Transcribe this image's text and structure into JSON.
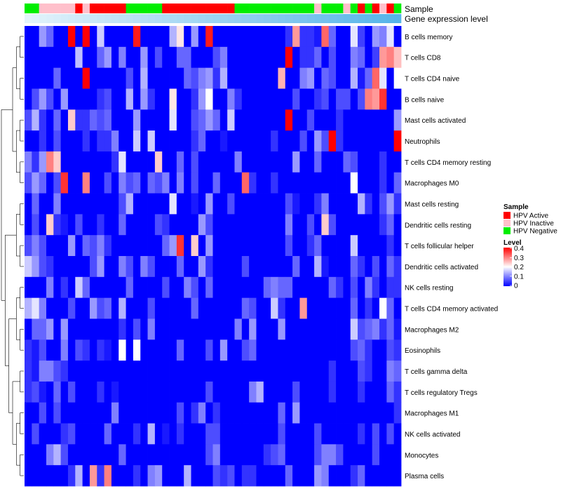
{
  "chart_data": {
    "type": "heatmap",
    "annotation_tracks": [
      "Sample",
      "Gene expression level"
    ],
    "rows": [
      "B cells memory",
      "T cells CD8",
      "T cells CD4 naive",
      "B cells naive",
      "Mast cells activated",
      "Neutrophils",
      "T cells CD4 memory resting",
      "Macrophages M0",
      "Mast cells resting",
      "Dendritic cells resting",
      "T cells follicular helper",
      "Dendritic cells activated",
      "NK cells resting",
      "T cells CD4 memory activated",
      "Macrophages M2",
      "Eosinophils",
      "T cells gamma delta",
      "T cells regulatory  Tregs",
      "Macrophages M1",
      "NK cells activated",
      "Monocytes",
      "Plasma cells"
    ],
    "sample_groups": [
      "Negative",
      "Negative",
      "Inactive",
      "Inactive",
      "Inactive",
      "Inactive",
      "Inactive",
      "Active",
      "Inactive",
      "Active",
      "Active",
      "Active",
      "Active",
      "Active",
      "Negative",
      "Negative",
      "Negative",
      "Negative",
      "Negative",
      "Active",
      "Active",
      "Active",
      "Active",
      "Active",
      "Active",
      "Active",
      "Active",
      "Active",
      "Active",
      "Negative",
      "Negative",
      "Negative",
      "Negative",
      "Negative",
      "Negative",
      "Negative",
      "Negative",
      "Negative",
      "Negative",
      "Negative",
      "Inactive",
      "Negative",
      "Negative",
      "Negative",
      "Inactive",
      "Negative",
      "Active",
      "Negative",
      "Active",
      "Inactive",
      "Active",
      "Negative"
    ],
    "legend": {
      "sample_title": "Sample",
      "sample_entries": [
        {
          "label": "HPV Active",
          "color": "#ff0000"
        },
        {
          "label": "HPV Inactive",
          "color": "#ffc0cb"
        },
        {
          "label": "HPV Negative",
          "color": "#00ee00"
        }
      ],
      "level_title": "Level",
      "level_ticks": [
        "0.4",
        "0.3",
        "0.2",
        "0.1",
        "0"
      ],
      "level_range": [
        0,
        0.4
      ],
      "colors": {
        "low": "#0000ff",
        "mid": "#ffffff",
        "high": "#ff0000"
      }
    },
    "expression_bar_colors": [
      "#e3f3fb",
      "#56b4e9"
    ],
    "values": [
      [
        0,
        0,
        0.12,
        0.08,
        0,
        0,
        0.4,
        0,
        0.4,
        0,
        0.16,
        0,
        0,
        0,
        0,
        0.38,
        0,
        0,
        0,
        0,
        0.14,
        0.22,
        0,
        0.12,
        0,
        0.38,
        0,
        0,
        0,
        0,
        0,
        0,
        0,
        0,
        0,
        0,
        0.04,
        0.28,
        0.04,
        0.04,
        0.02,
        0.32,
        0.08,
        0,
        0,
        0.18,
        0.05,
        0,
        0.12,
        0.1,
        0.18,
        0
      ],
      [
        0,
        0,
        0,
        0,
        0,
        0,
        0,
        0.15,
        0,
        0,
        0.08,
        0.12,
        0,
        0.1,
        0,
        0,
        0.12,
        0,
        0.06,
        0,
        0,
        0.08,
        0.08,
        0,
        0,
        0,
        0.06,
        0.1,
        0,
        0,
        0,
        0,
        0,
        0,
        0,
        0,
        0.4,
        0,
        0.04,
        0.04,
        0.08,
        0,
        0.06,
        0,
        0,
        0.1,
        0.08,
        0,
        0.05,
        0.28,
        0.3,
        0.25
      ],
      [
        0,
        0,
        0,
        0,
        0.08,
        0,
        0,
        0,
        0.4,
        0,
        0,
        0,
        0,
        0,
        0.06,
        0,
        0.14,
        0,
        0,
        0,
        0,
        0,
        0.08,
        0.06,
        0.1,
        0.12,
        0.04,
        0.14,
        0,
        0,
        0,
        0,
        0,
        0,
        0,
        0.26,
        0,
        0,
        0.1,
        0.12,
        0,
        0.08,
        0.06,
        0,
        0,
        0.14,
        0.02,
        0.08,
        0.32,
        0.18,
        0,
        0.2
      ],
      [
        0,
        0.06,
        0.12,
        0.06,
        0,
        0.12,
        0,
        0,
        0,
        0,
        0.04,
        0.06,
        0,
        0,
        0.14,
        0,
        0.12,
        0.04,
        0,
        0,
        0.22,
        0,
        0,
        0.04,
        0.12,
        0.2,
        0,
        0,
        0.1,
        0.04,
        0,
        0,
        0,
        0,
        0,
        0,
        0,
        0.06,
        0,
        0,
        0.04,
        0.06,
        0,
        0.06,
        0.06,
        0,
        0.06,
        0.3,
        0.28,
        0.36,
        0,
        0
      ],
      [
        0.06,
        0.14,
        0.04,
        0,
        0.08,
        0,
        0.24,
        0.04,
        0.04,
        0.08,
        0.06,
        0.08,
        0,
        0,
        0,
        0.12,
        0,
        0,
        0,
        0,
        0.18,
        0,
        0,
        0.06,
        0.08,
        0.12,
        0.08,
        0,
        0.16,
        0,
        0,
        0,
        0,
        0,
        0,
        0,
        0.4,
        0,
        0,
        0.06,
        0,
        0,
        0,
        0.04,
        0,
        0,
        0,
        0,
        0,
        0,
        0,
        0.12
      ],
      [
        0,
        0,
        0.04,
        0,
        0.06,
        0,
        0,
        0,
        0.04,
        0,
        0.04,
        0.04,
        0.1,
        0,
        0,
        0.16,
        0,
        0.16,
        0,
        0,
        0,
        0,
        0,
        0.04,
        0.08,
        0,
        0,
        0.02,
        0,
        0,
        0,
        0,
        0,
        0,
        0.04,
        0,
        0,
        0,
        0.06,
        0,
        0.12,
        0.06,
        0.4,
        0.04,
        0,
        0,
        0,
        0,
        0,
        0,
        0,
        0.4
      ],
      [
        0.1,
        0.04,
        0.12,
        0.3,
        0.24,
        0,
        0,
        0,
        0,
        0,
        0,
        0,
        0.04,
        0.18,
        0,
        0,
        0,
        0,
        0.24,
        0,
        0,
        0.08,
        0,
        0.06,
        0,
        0,
        0,
        0,
        0,
        0.1,
        0,
        0,
        0,
        0,
        0,
        0,
        0,
        0.12,
        0,
        0,
        0.08,
        0,
        0,
        0,
        0.08,
        0.06,
        0,
        0,
        0,
        0.04,
        0,
        0
      ],
      [
        0.06,
        0.12,
        0.08,
        0,
        0.06,
        0.36,
        0,
        0,
        0.3,
        0,
        0,
        0.06,
        0,
        0.1,
        0.06,
        0.08,
        0,
        0.08,
        0.06,
        0.1,
        0,
        0.1,
        0,
        0.06,
        0,
        0,
        0.08,
        0,
        0,
        0,
        0.32,
        0.04,
        0,
        0,
        0.04,
        0,
        0,
        0,
        0,
        0,
        0,
        0,
        0,
        0,
        0,
        0.2,
        0,
        0,
        0,
        0.04,
        0,
        0.08
      ],
      [
        0,
        0.08,
        0,
        0,
        0.1,
        0,
        0,
        0,
        0,
        0,
        0,
        0,
        0,
        0.06,
        0.14,
        0,
        0,
        0,
        0,
        0,
        0.18,
        0,
        0,
        0.02,
        0,
        0.12,
        0,
        0,
        0.06,
        0,
        0,
        0,
        0,
        0,
        0,
        0,
        0.06,
        0.02,
        0,
        0,
        0.04,
        0.1,
        0,
        0,
        0,
        0,
        0.14,
        0.04,
        0,
        0.06,
        0.12,
        0.04
      ],
      [
        0,
        0.06,
        0,
        0.24,
        0.04,
        0.02,
        0,
        0.06,
        0,
        0,
        0.04,
        0,
        0,
        0.08,
        0,
        0,
        0,
        0,
        0.06,
        0.04,
        0,
        0,
        0,
        0,
        0.12,
        0.06,
        0,
        0,
        0,
        0,
        0,
        0,
        0,
        0,
        0,
        0,
        0.1,
        0,
        0,
        0.06,
        0,
        0.24,
        0.06,
        0,
        0,
        0,
        0,
        0,
        0,
        0.04,
        0.08,
        0
      ],
      [
        0.06,
        0.1,
        0.06,
        0,
        0,
        0,
        0.12,
        0,
        0.08,
        0.06,
        0.1,
        0.04,
        0,
        0,
        0,
        0,
        0,
        0,
        0,
        0.08,
        0.12,
        0.36,
        0,
        0.24,
        0,
        0.12,
        0,
        0,
        0,
        0,
        0,
        0,
        0,
        0,
        0,
        0,
        0.06,
        0,
        0,
        0.04,
        0.08,
        0,
        0,
        0,
        0,
        0.16,
        0,
        0,
        0,
        0,
        0.04,
        0
      ],
      [
        0.16,
        0.12,
        0.06,
        0.04,
        0,
        0,
        0,
        0,
        0,
        0.06,
        0.12,
        0,
        0,
        0.1,
        0.06,
        0,
        0.1,
        0.06,
        0,
        0,
        0,
        0.08,
        0,
        0,
        0.12,
        0.04,
        0,
        0,
        0,
        0,
        0.06,
        0,
        0,
        0,
        0,
        0,
        0,
        0.08,
        0,
        0,
        0.14,
        0.02,
        0,
        0,
        0,
        0.08,
        0.04,
        0,
        0.06,
        0,
        0.08,
        0.04
      ],
      [
        0,
        0,
        0,
        0.1,
        0,
        0.04,
        0,
        0.16,
        0.08,
        0,
        0,
        0,
        0,
        0,
        0.08,
        0,
        0,
        0,
        0,
        0.06,
        0,
        0,
        0.1,
        0.06,
        0,
        0.08,
        0,
        0,
        0,
        0,
        0,
        0,
        0,
        0.08,
        0.1,
        0.08,
        0.08,
        0,
        0,
        0,
        0,
        0,
        0.08,
        0.04,
        0,
        0.06,
        0,
        0.1,
        0.04,
        0,
        0.04,
        0.04
      ],
      [
        0.14,
        0.18,
        0.1,
        0,
        0,
        0,
        0.06,
        0,
        0,
        0.12,
        0.06,
        0.08,
        0,
        0.14,
        0,
        0,
        0,
        0.06,
        0,
        0,
        0,
        0,
        0,
        0.08,
        0,
        0,
        0,
        0,
        0,
        0,
        0.08,
        0.06,
        0,
        0,
        0.16,
        0.04,
        0,
        0,
        0.28,
        0,
        0,
        0,
        0,
        0,
        0,
        0.08,
        0,
        0.04,
        0,
        0.2,
        0.08,
        0
      ],
      [
        0,
        0.08,
        0.08,
        0.12,
        0,
        0.12,
        0,
        0,
        0,
        0,
        0,
        0,
        0,
        0.04,
        0,
        0.06,
        0,
        0.1,
        0,
        0,
        0,
        0,
        0,
        0,
        0,
        0,
        0,
        0,
        0,
        0.1,
        0,
        0.12,
        0,
        0,
        0,
        0.12,
        0,
        0,
        0,
        0,
        0,
        0,
        0,
        0,
        0,
        0.16,
        0.06,
        0.08,
        0.1,
        0.04,
        0.08,
        0.02
      ],
      [
        0.04,
        0.02,
        0.06,
        0,
        0,
        0.1,
        0,
        0.06,
        0.04,
        0,
        0.04,
        0.02,
        0,
        0.2,
        0,
        0.2,
        0,
        0,
        0,
        0,
        0,
        0.08,
        0,
        0,
        0,
        0.06,
        0,
        0.12,
        0,
        0,
        0.06,
        0.08,
        0,
        0,
        0,
        0,
        0,
        0,
        0,
        0,
        0,
        0,
        0,
        0,
        0,
        0.06,
        0.08,
        0.04,
        0,
        0,
        0.06,
        0.04
      ],
      [
        0.04,
        0.02,
        0.1,
        0.1,
        0.06,
        0.04,
        0,
        0,
        0,
        0,
        0,
        0,
        0,
        0,
        0,
        0,
        0,
        0,
        0,
        0,
        0,
        0,
        0,
        0,
        0,
        0,
        0,
        0,
        0,
        0,
        0,
        0,
        0,
        0,
        0,
        0,
        0,
        0,
        0,
        0,
        0,
        0,
        0.04,
        0,
        0,
        0,
        0.06,
        0.04,
        0,
        0,
        0.1,
        0.08
      ],
      [
        0.04,
        0.06,
        0.02,
        0,
        0.08,
        0,
        0.06,
        0,
        0,
        0,
        0.04,
        0,
        0.02,
        0,
        0,
        0,
        0,
        0,
        0,
        0,
        0,
        0,
        0,
        0,
        0,
        0.06,
        0,
        0,
        0,
        0,
        0,
        0.1,
        0.14,
        0,
        0,
        0,
        0,
        0.06,
        0,
        0,
        0,
        0,
        0.04,
        0,
        0,
        0,
        0.04,
        0,
        0,
        0,
        0.08,
        0.04
      ],
      [
        0,
        0,
        0.06,
        0,
        0.06,
        0,
        0,
        0,
        0,
        0,
        0,
        0,
        0.1,
        0,
        0,
        0,
        0,
        0,
        0,
        0,
        0,
        0.06,
        0,
        0.04,
        0.1,
        0,
        0.04,
        0,
        0,
        0,
        0,
        0,
        0,
        0,
        0,
        0.08,
        0,
        0.12,
        0,
        0,
        0,
        0,
        0,
        0,
        0,
        0,
        0,
        0,
        0,
        0,
        0,
        0.04
      ],
      [
        0,
        0.06,
        0,
        0,
        0,
        0.04,
        0.06,
        0,
        0,
        0,
        0,
        0.08,
        0,
        0,
        0,
        0.04,
        0,
        0.14,
        0,
        0.02,
        0,
        0.04,
        0,
        0,
        0,
        0.06,
        0.06,
        0,
        0,
        0,
        0,
        0,
        0,
        0,
        0,
        0.06,
        0,
        0,
        0,
        0,
        0.06,
        0,
        0,
        0,
        0,
        0,
        0.04,
        0,
        0.06,
        0,
        0.06,
        0
      ],
      [
        0,
        0,
        0,
        0.1,
        0.14,
        0.06,
        0,
        0,
        0,
        0,
        0,
        0,
        0,
        0.08,
        0,
        0,
        0,
        0,
        0,
        0,
        0,
        0,
        0,
        0,
        0,
        0.06,
        0.1,
        0,
        0,
        0,
        0,
        0,
        0,
        0.04,
        0.06,
        0.08,
        0,
        0,
        0,
        0,
        0.06,
        0.1,
        0.1,
        0.06,
        0,
        0,
        0,
        0,
        0.06,
        0,
        0,
        0
      ],
      [
        0,
        0,
        0,
        0,
        0,
        0,
        0.04,
        0.14,
        0,
        0.28,
        0.04,
        0.3,
        0,
        0,
        0,
        0.04,
        0,
        0.1,
        0.12,
        0,
        0,
        0,
        0.14,
        0,
        0,
        0,
        0.06,
        0.04,
        0.06,
        0,
        0.04,
        0.04,
        0,
        0,
        0,
        0,
        0.08,
        0,
        0,
        0,
        0.12,
        0.1,
        0,
        0,
        0,
        0.04,
        0.08,
        0,
        0,
        0,
        0,
        0
      ]
    ]
  }
}
